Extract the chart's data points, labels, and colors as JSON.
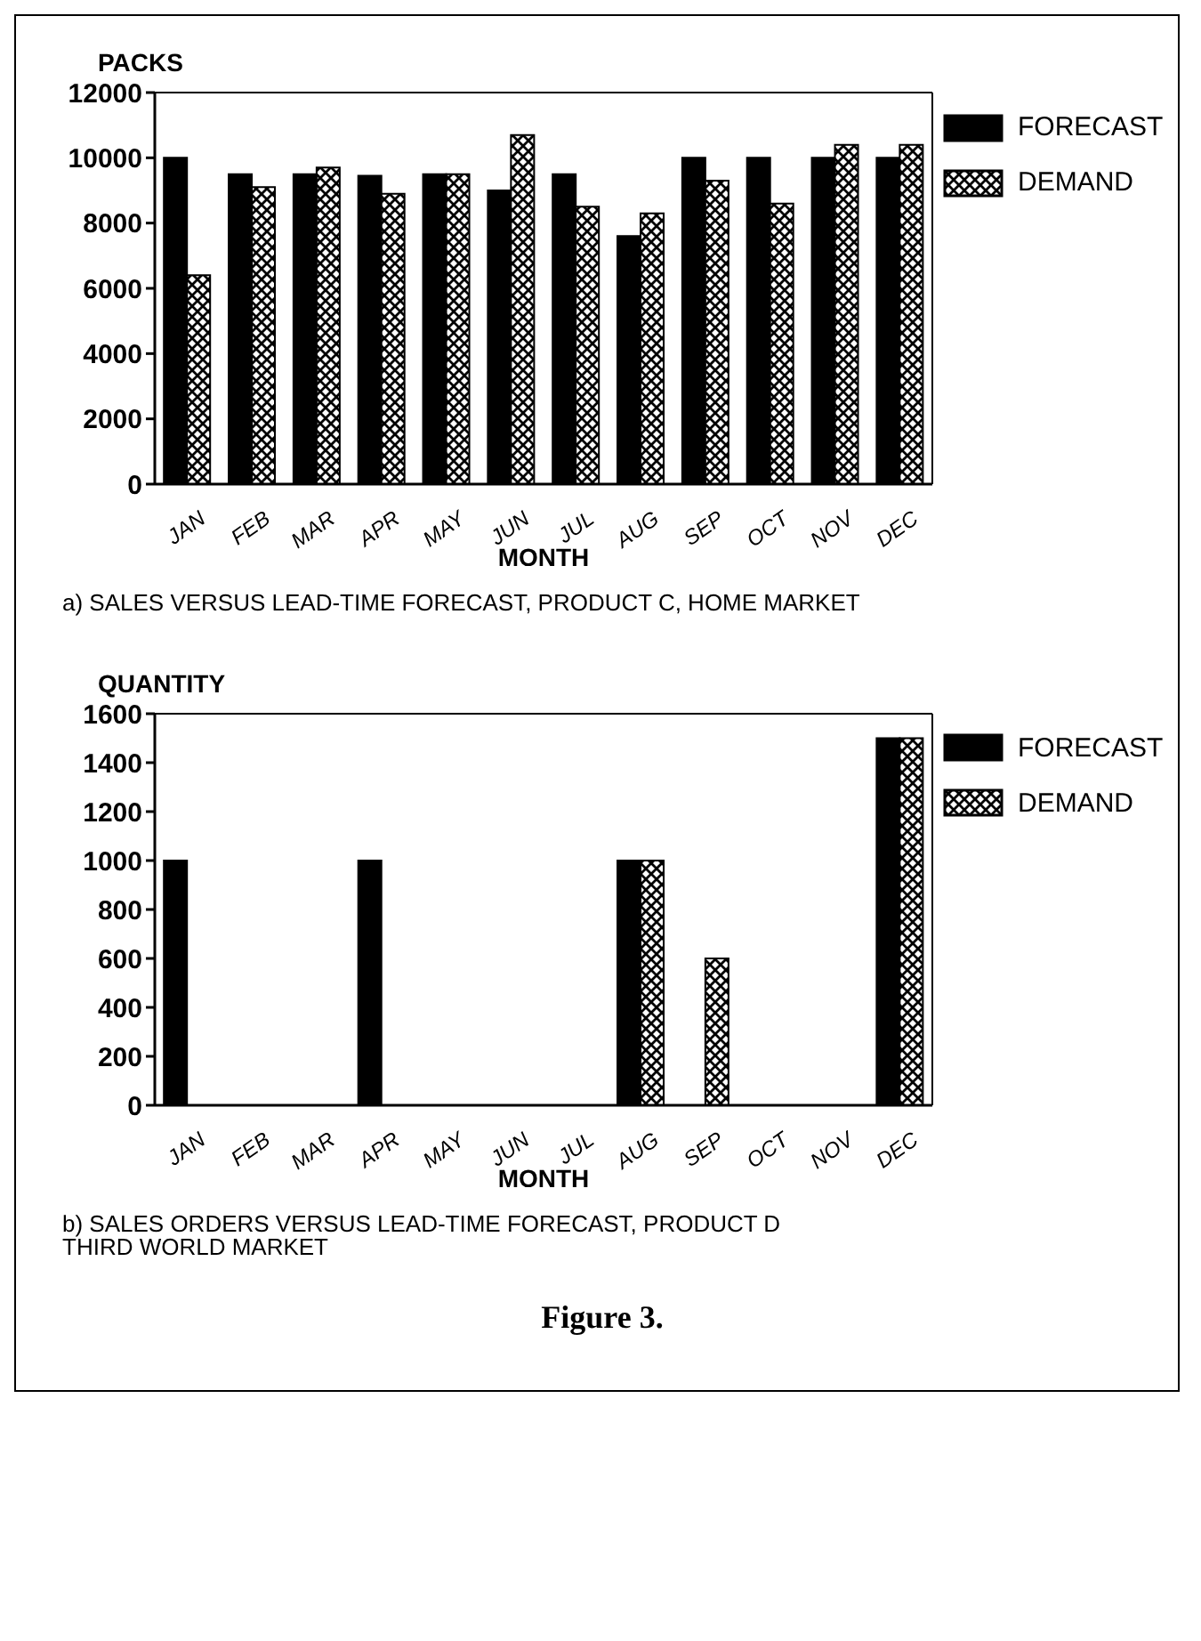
{
  "chart_data": [
    {
      "type": "bar",
      "title": "a) SALES VERSUS LEAD-TIME FORECAST, PRODUCT C, HOME MARKET",
      "xlabel": "MONTH",
      "ylabel": "PACKS",
      "categories": [
        "JAN",
        "FEB",
        "MAR",
        "APR",
        "MAY",
        "JUN",
        "JUL",
        "AUG",
        "SEP",
        "OCT",
        "NOV",
        "DEC"
      ],
      "series": [
        {
          "name": "FORECAST",
          "color": "#000000",
          "values": [
            10000,
            9500,
            9500,
            9450,
            9500,
            9000,
            9500,
            7600,
            10000,
            10000,
            10000,
            10000
          ]
        },
        {
          "name": "DEMAND",
          "color": "#000000",
          "values": [
            6400,
            9100,
            9700,
            8900,
            9500,
            10700,
            8500,
            8300,
            9300,
            8600,
            10400,
            10400
          ]
        }
      ],
      "ylim": [
        0,
        12000
      ],
      "yticks": [
        0,
        2000,
        4000,
        6000,
        8000,
        10000,
        12000
      ],
      "grid": false,
      "legend": "top right"
    },
    {
      "type": "bar",
      "title": "b) SALES ORDERS VERSUS LEAD-TIME FORECAST, PRODUCT D\nTHIRD WORLD MARKET",
      "xlabel": "MONTH",
      "ylabel": "QUANTITY",
      "categories": [
        "JAN",
        "FEB",
        "MAR",
        "APR",
        "MAY",
        "JUN",
        "JUL",
        "AUG",
        "SEP",
        "OCT",
        "NOV",
        "DEC"
      ],
      "series": [
        {
          "name": "FORECAST",
          "color": "#000000",
          "values": [
            1000,
            0,
            0,
            1000,
            0,
            0,
            0,
            1000,
            0,
            0,
            0,
            1500
          ]
        },
        {
          "name": "DEMAND",
          "color": "#000000",
          "values": [
            0,
            0,
            0,
            0,
            0,
            0,
            0,
            1000,
            600,
            0,
            0,
            1500
          ]
        }
      ],
      "ylim": [
        0,
        1600
      ],
      "yticks": [
        0,
        200,
        400,
        600,
        800,
        1000,
        1200,
        1400,
        1600
      ],
      "grid": false,
      "legend": "top right",
      "annotations": [
        "Figure 3."
      ]
    }
  ]
}
